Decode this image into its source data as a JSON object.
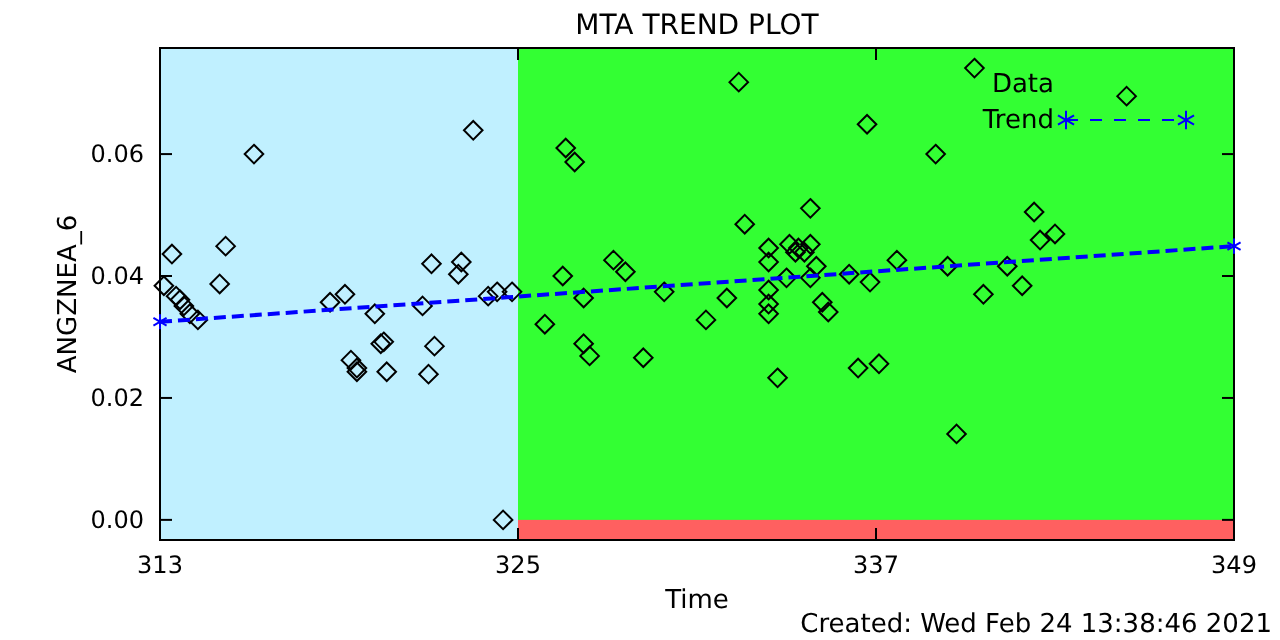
{
  "chart_data": {
    "type": "scatter",
    "title": "MTA TREND PLOT",
    "xlabel": "Time",
    "ylabel": "ANGZNEA_6",
    "annotations": [
      "Created: Wed Feb 24 13:38:46 2021"
    ],
    "xlim": [
      313,
      349
    ],
    "ylim": [
      -0.0033,
      0.0774
    ],
    "xticks": [
      313,
      325,
      337,
      349
    ],
    "yticks": [
      {
        "value": 0,
        "label": "0.00"
      },
      {
        "value": 0.02,
        "label": "0.02"
      },
      {
        "value": 0.04,
        "label": "0.04"
      },
      {
        "value": 0.06,
        "label": "0.06"
      }
    ],
    "grid": false,
    "legend": "top right",
    "bands": [
      {
        "axis": "x",
        "from": 325,
        "to": 349,
        "color": "#33ff33"
      },
      {
        "axis": "y",
        "from": -0.0033,
        "to": 0,
        "color": "#ff6060"
      },
      {
        "axis": "x",
        "from": 313,
        "to": 325,
        "color": "#c0f0ff"
      }
    ],
    "series": [
      {
        "name": "Data",
        "color": "#000000",
        "marker": "diamond",
        "x": [
          313.4,
          313.13,
          313.54,
          313.67,
          313.8,
          314.0,
          314.27,
          316.15,
          315.2,
          315.0,
          318.7,
          319.2,
          320.2,
          320.4,
          320.5,
          319.4,
          319.6,
          319.6,
          320.6,
          322.2,
          322.0,
          321.8,
          322.1,
          323.0,
          323.1,
          323.5,
          324.0,
          324.3,
          324.8,
          324.5,
          332.4,
          336.7,
          326.6,
          326.9,
          334.8,
          332.6,
          333.4,
          333.4,
          334.1,
          334.3,
          334.4,
          334.6,
          334.8,
          335.0,
          328.2,
          328.6,
          326.5,
          327.2,
          329.9,
          332.0,
          333.4,
          333.4,
          333.4,
          334.0,
          334.8,
          336.1,
          336.8,
          325.9,
          331.3,
          335.2,
          335.4,
          327.2,
          327.4,
          329.2,
          333.7,
          336.4,
          337.1,
          340.3,
          345.4,
          339.0,
          342.3,
          342.5,
          343.0,
          337.7,
          339.4,
          341.4,
          340.6,
          341.9,
          339.7
        ],
        "values": [
          0.0436,
          0.0384,
          0.0367,
          0.0361,
          0.0351,
          0.0338,
          0.0328,
          0.06,
          0.0449,
          0.0387,
          0.0357,
          0.037,
          0.0338,
          0.0289,
          0.0292,
          0.0262,
          0.0249,
          0.0243,
          0.0243,
          0.0285,
          0.0239,
          0.0351,
          0.042,
          0.0403,
          0.0423,
          0.0639,
          0.0367,
          0.0374,
          0.0374,
          0.0,
          0.0718,
          0.0649,
          0.061,
          0.0587,
          0.0511,
          0.0485,
          0.0446,
          0.0423,
          0.0452,
          0.0439,
          0.0446,
          0.0439,
          0.0452,
          0.0416,
          0.0426,
          0.0407,
          0.04,
          0.0364,
          0.0374,
          0.0364,
          0.0377,
          0.0354,
          0.0338,
          0.0397,
          0.0397,
          0.0403,
          0.039,
          0.0321,
          0.0328,
          0.0357,
          0.0341,
          0.0289,
          0.0269,
          0.0266,
          0.0233,
          0.0249,
          0.0256,
          0.0741,
          0.0695,
          0.06,
          0.0505,
          0.0459,
          0.0469,
          0.0426,
          0.0416,
          0.0416,
          0.037,
          0.0384,
          0.0141
        ]
      },
      {
        "name": "Trend",
        "type": "line",
        "color": "#0000ff",
        "marker": "cross",
        "line_style": "dashed",
        "x": [
          313,
          349
        ],
        "values": [
          0.0325,
          0.0449
        ]
      }
    ]
  }
}
